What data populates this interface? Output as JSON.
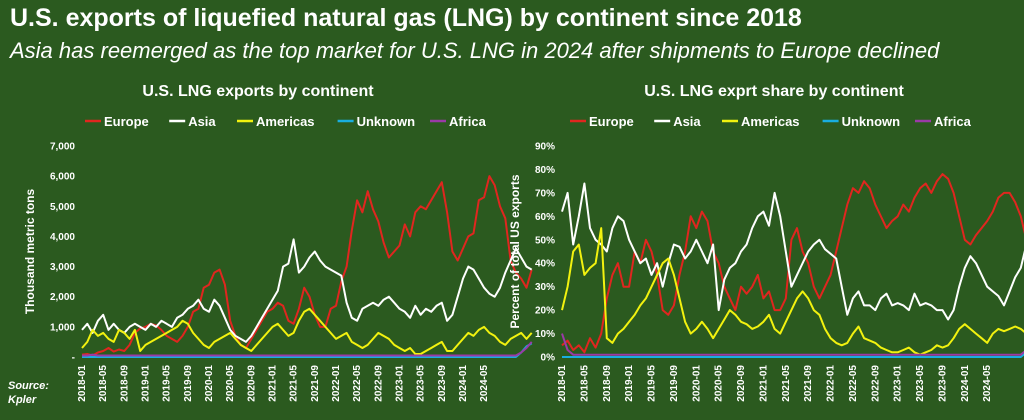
{
  "header": {
    "title": "U.S. exports of liquefied natural gas (LNG) by continent since 2018",
    "subtitle": "Asia has reemerged as the top market for U.S. LNG in 2024 after shipments to Europe declined"
  },
  "source": {
    "label": "Source:",
    "name": "Kpler"
  },
  "colors": {
    "background": "#2b5a1f",
    "Europe": "#e0261f",
    "Asia": "#ffffff",
    "Americas": "#f2f20f",
    "Unknown": "#19aee0",
    "Africa": "#9a3aa6"
  },
  "chart_data": [
    {
      "type": "line",
      "title": "U.S. LNG exports by continent",
      "ylabel": "Thousand metric tons",
      "ylim": [
        0,
        7000
      ],
      "yticks": [
        0,
        1000,
        2000,
        3000,
        4000,
        5000,
        6000,
        7000
      ],
      "ytick_labels": [
        "-",
        "1,000",
        "2,000",
        "3,000",
        "4,000",
        "5,000",
        "6,000",
        "7,000"
      ],
      "xticks": [
        "2018-01",
        "2018-05",
        "2018-09",
        "2019-01",
        "2019-05",
        "2019-09",
        "2020-01",
        "2020-05",
        "2020-09",
        "2021-01",
        "2021-05",
        "2021-09",
        "2022-01",
        "2022-05",
        "2022-09",
        "2023-01",
        "2023-05",
        "2023-09",
        "2024-01",
        "2024-05"
      ],
      "x_start": "2018-01",
      "x_end": "2024-08",
      "legend": "top-left",
      "series": [
        {
          "name": "Europe",
          "values": [
            80,
            100,
            50,
            150,
            200,
            300,
            180,
            250,
            200,
            400,
            800,
            950,
            1000,
            1100,
            1050,
            900,
            700,
            600,
            500,
            700,
            1000,
            1500,
            1600,
            2300,
            2400,
            2800,
            2900,
            2400,
            1200,
            700,
            400,
            300,
            600,
            900,
            1200,
            1500,
            1600,
            1800,
            1700,
            1200,
            1100,
            1600,
            2300,
            2000,
            1400,
            1000,
            1000,
            1600,
            1700,
            2500,
            3000,
            4200,
            5200,
            4800,
            5500,
            4900,
            4500,
            3800,
            3300,
            3500,
            3700,
            4400,
            4000,
            4800,
            5000,
            4900,
            5200,
            5500,
            5800,
            4800,
            3500,
            3200,
            3600,
            4000,
            4100,
            5200,
            5300,
            6000,
            5700,
            5000,
            4600,
            3200,
            2800,
            2600,
            2300,
            2900
          ]
        },
        {
          "name": "Asia",
          "values": [
            900,
            1100,
            800,
            1200,
            1400,
            900,
            1100,
            900,
            800,
            1000,
            1100,
            1000,
            900,
            1100,
            1000,
            1200,
            1100,
            1000,
            1300,
            1400,
            1600,
            1700,
            1900,
            1600,
            1500,
            1900,
            1700,
            1300,
            900,
            700,
            600,
            500,
            700,
            1000,
            1300,
            1600,
            1900,
            2200,
            3000,
            3100,
            3900,
            2800,
            3000,
            3300,
            3500,
            3200,
            3000,
            2900,
            2800,
            2700,
            1800,
            1300,
            1200,
            1600,
            1700,
            1800,
            1700,
            1900,
            2000,
            1800,
            1600,
            1500,
            1300,
            1700,
            1400,
            1600,
            1500,
            1700,
            1800,
            1200,
            1400,
            2000,
            2600,
            3000,
            2900,
            2600,
            2300,
            2100,
            2000,
            2300,
            2800,
            3200,
            3600,
            3300,
            3000,
            2900
          ]
        },
        {
          "name": "Americas",
          "values": [
            300,
            500,
            900,
            700,
            800,
            600,
            500,
            900,
            800,
            600,
            900,
            200,
            400,
            500,
            600,
            700,
            800,
            900,
            1000,
            1200,
            1100,
            800,
            600,
            400,
            300,
            500,
            600,
            700,
            800,
            600,
            400,
            300,
            200,
            400,
            600,
            800,
            1000,
            1100,
            900,
            700,
            800,
            1200,
            1500,
            1600,
            1400,
            1200,
            1000,
            800,
            600,
            700,
            800,
            500,
            400,
            300,
            400,
            600,
            800,
            700,
            600,
            400,
            300,
            200,
            300,
            100,
            100,
            200,
            300,
            400,
            500,
            200,
            200,
            400,
            600,
            800,
            700,
            900,
            1000,
            800,
            700,
            500,
            400,
            600,
            700,
            800,
            600,
            800
          ]
        },
        {
          "name": "Unknown",
          "values": [
            0,
            0,
            0,
            0,
            0,
            0,
            0,
            0,
            0,
            0,
            0,
            0,
            0,
            0,
            0,
            0,
            0,
            0,
            0,
            0,
            0,
            0,
            0,
            0,
            0,
            0,
            0,
            0,
            0,
            0,
            0,
            0,
            0,
            0,
            0,
            0,
            0,
            0,
            0,
            0,
            0,
            0,
            0,
            0,
            0,
            0,
            0,
            0,
            0,
            0,
            0,
            0,
            0,
            0,
            0,
            0,
            0,
            0,
            0,
            0,
            0,
            0,
            0,
            0,
            0,
            0,
            0,
            0,
            0,
            0,
            0,
            0,
            0,
            0,
            0,
            0,
            0,
            0,
            0,
            0,
            0,
            0,
            0,
            150,
            350,
            450
          ]
        },
        {
          "name": "Africa",
          "values": [
            50,
            50,
            80,
            50,
            50,
            50,
            50,
            50,
            50,
            50,
            50,
            50,
            50,
            50,
            50,
            50,
            50,
            50,
            50,
            50,
            50,
            50,
            50,
            50,
            50,
            50,
            50,
            50,
            50,
            50,
            50,
            50,
            50,
            50,
            50,
            50,
            50,
            50,
            50,
            50,
            50,
            50,
            50,
            50,
            50,
            50,
            50,
            50,
            50,
            50,
            50,
            50,
            50,
            50,
            50,
            50,
            50,
            50,
            50,
            50,
            50,
            50,
            50,
            50,
            50,
            50,
            50,
            50,
            50,
            50,
            50,
            50,
            50,
            50,
            50,
            50,
            50,
            50,
            50,
            50,
            50,
            50,
            50,
            150,
            300,
            500
          ]
        }
      ]
    },
    {
      "type": "line",
      "title": "U.S. LNG exprt share by continent",
      "ylabel": "Percent of total US exports",
      "ylim": [
        0,
        90
      ],
      "yticks": [
        0,
        10,
        20,
        30,
        40,
        50,
        60,
        70,
        80,
        90
      ],
      "ytick_labels": [
        "0%",
        "10%",
        "20%",
        "30%",
        "40%",
        "50%",
        "60%",
        "70%",
        "80%",
        "90%"
      ],
      "xticks": [
        "2018-01",
        "2018-05",
        "2018-09",
        "2019-01",
        "2019-05",
        "2019-09",
        "2020-01",
        "2020-05",
        "2020-09",
        "2021-01",
        "2021-05",
        "2021-09",
        "2022-01",
        "2022-05",
        "2022-09",
        "2023-01",
        "2023-05",
        "2023-09",
        "2024-01",
        "2024-05"
      ],
      "x_start": "2018-01",
      "x_end": "2024-08",
      "legend": "top-left",
      "series": [
        {
          "name": "Europe",
          "values": [
            5,
            7,
            3,
            5,
            2,
            8,
            4,
            10,
            25,
            35,
            40,
            30,
            30,
            45,
            40,
            50,
            45,
            35,
            20,
            18,
            22,
            35,
            45,
            60,
            55,
            62,
            58,
            45,
            40,
            30,
            25,
            20,
            30,
            27,
            30,
            35,
            25,
            28,
            20,
            20,
            25,
            50,
            55,
            45,
            40,
            30,
            25,
            30,
            35,
            45,
            55,
            65,
            72,
            70,
            75,
            72,
            65,
            60,
            55,
            58,
            60,
            65,
            62,
            68,
            72,
            74,
            70,
            75,
            78,
            76,
            70,
            60,
            50,
            48,
            52,
            55,
            58,
            62,
            68,
            70,
            70,
            66,
            60,
            50,
            40,
            38,
            35,
            40
          ]
        },
        {
          "name": "Asia",
          "values": [
            62,
            70,
            48,
            60,
            74,
            55,
            50,
            48,
            45,
            55,
            60,
            58,
            50,
            45,
            40,
            42,
            35,
            40,
            30,
            40,
            48,
            47,
            42,
            45,
            50,
            45,
            40,
            48,
            20,
            33,
            38,
            40,
            45,
            48,
            55,
            60,
            62,
            56,
            70,
            60,
            45,
            30,
            35,
            40,
            45,
            48,
            50,
            46,
            44,
            42,
            30,
            18,
            25,
            28,
            22,
            22,
            20,
            25,
            27,
            22,
            23,
            22,
            20,
            27,
            22,
            23,
            22,
            20,
            20,
            16,
            20,
            30,
            38,
            43,
            40,
            35,
            30,
            28,
            26,
            22,
            28,
            34,
            38,
            48,
            45,
            40
          ]
        },
        {
          "name": "Americas",
          "values": [
            20,
            30,
            45,
            48,
            35,
            38,
            40,
            55,
            8,
            6,
            10,
            12,
            15,
            18,
            22,
            25,
            30,
            35,
            40,
            42,
            35,
            25,
            15,
            10,
            12,
            15,
            12,
            8,
            12,
            16,
            20,
            18,
            15,
            14,
            12,
            13,
            15,
            18,
            12,
            10,
            15,
            20,
            25,
            28,
            25,
            20,
            18,
            12,
            8,
            6,
            5,
            6,
            10,
            13,
            8,
            7,
            6,
            4,
            3,
            2,
            2,
            3,
            4,
            2,
            1,
            2,
            3,
            5,
            4,
            5,
            8,
            12,
            14,
            12,
            10,
            8,
            6,
            10,
            12,
            11,
            12,
            13,
            12,
            10,
            10,
            12
          ]
        },
        {
          "name": "Unknown",
          "values": [
            0,
            0,
            0,
            0,
            0,
            0,
            0,
            0,
            0,
            0,
            0,
            0,
            0,
            0,
            0,
            0,
            0,
            0,
            0,
            0,
            0,
            0,
            0,
            0,
            0,
            0,
            0,
            0,
            0,
            0,
            0,
            0,
            0,
            0,
            0,
            0,
            0,
            0,
            0,
            0,
            0,
            0,
            0,
            0,
            0,
            0,
            0,
            0,
            0,
            0,
            0,
            0,
            0,
            0,
            0,
            0,
            0,
            0,
            0,
            0,
            0,
            0,
            0,
            0,
            0,
            0,
            0,
            0,
            0,
            0,
            0,
            0,
            0,
            0,
            0,
            0,
            0,
            0,
            0,
            0,
            0,
            0,
            0,
            2,
            4,
            6
          ]
        },
        {
          "name": "Africa",
          "values": [
            10,
            3,
            1,
            1,
            1,
            1,
            1,
            1,
            1,
            1,
            1,
            1,
            1,
            1,
            1,
            1,
            1,
            1,
            1,
            1,
            1,
            1,
            1,
            1,
            1,
            1,
            1,
            1,
            1,
            1,
            1,
            1,
            1,
            1,
            1,
            1,
            1,
            1,
            1,
            1,
            1,
            1,
            1,
            1,
            1,
            1,
            1,
            1,
            1,
            1,
            1,
            1,
            1,
            1,
            1,
            1,
            1,
            1,
            1,
            1,
            1,
            1,
            1,
            1,
            1,
            1,
            1,
            1,
            1,
            1,
            1,
            1,
            1,
            1,
            1,
            1,
            1,
            1,
            1,
            1,
            1,
            1,
            1,
            3,
            6,
            8
          ]
        }
      ]
    }
  ]
}
